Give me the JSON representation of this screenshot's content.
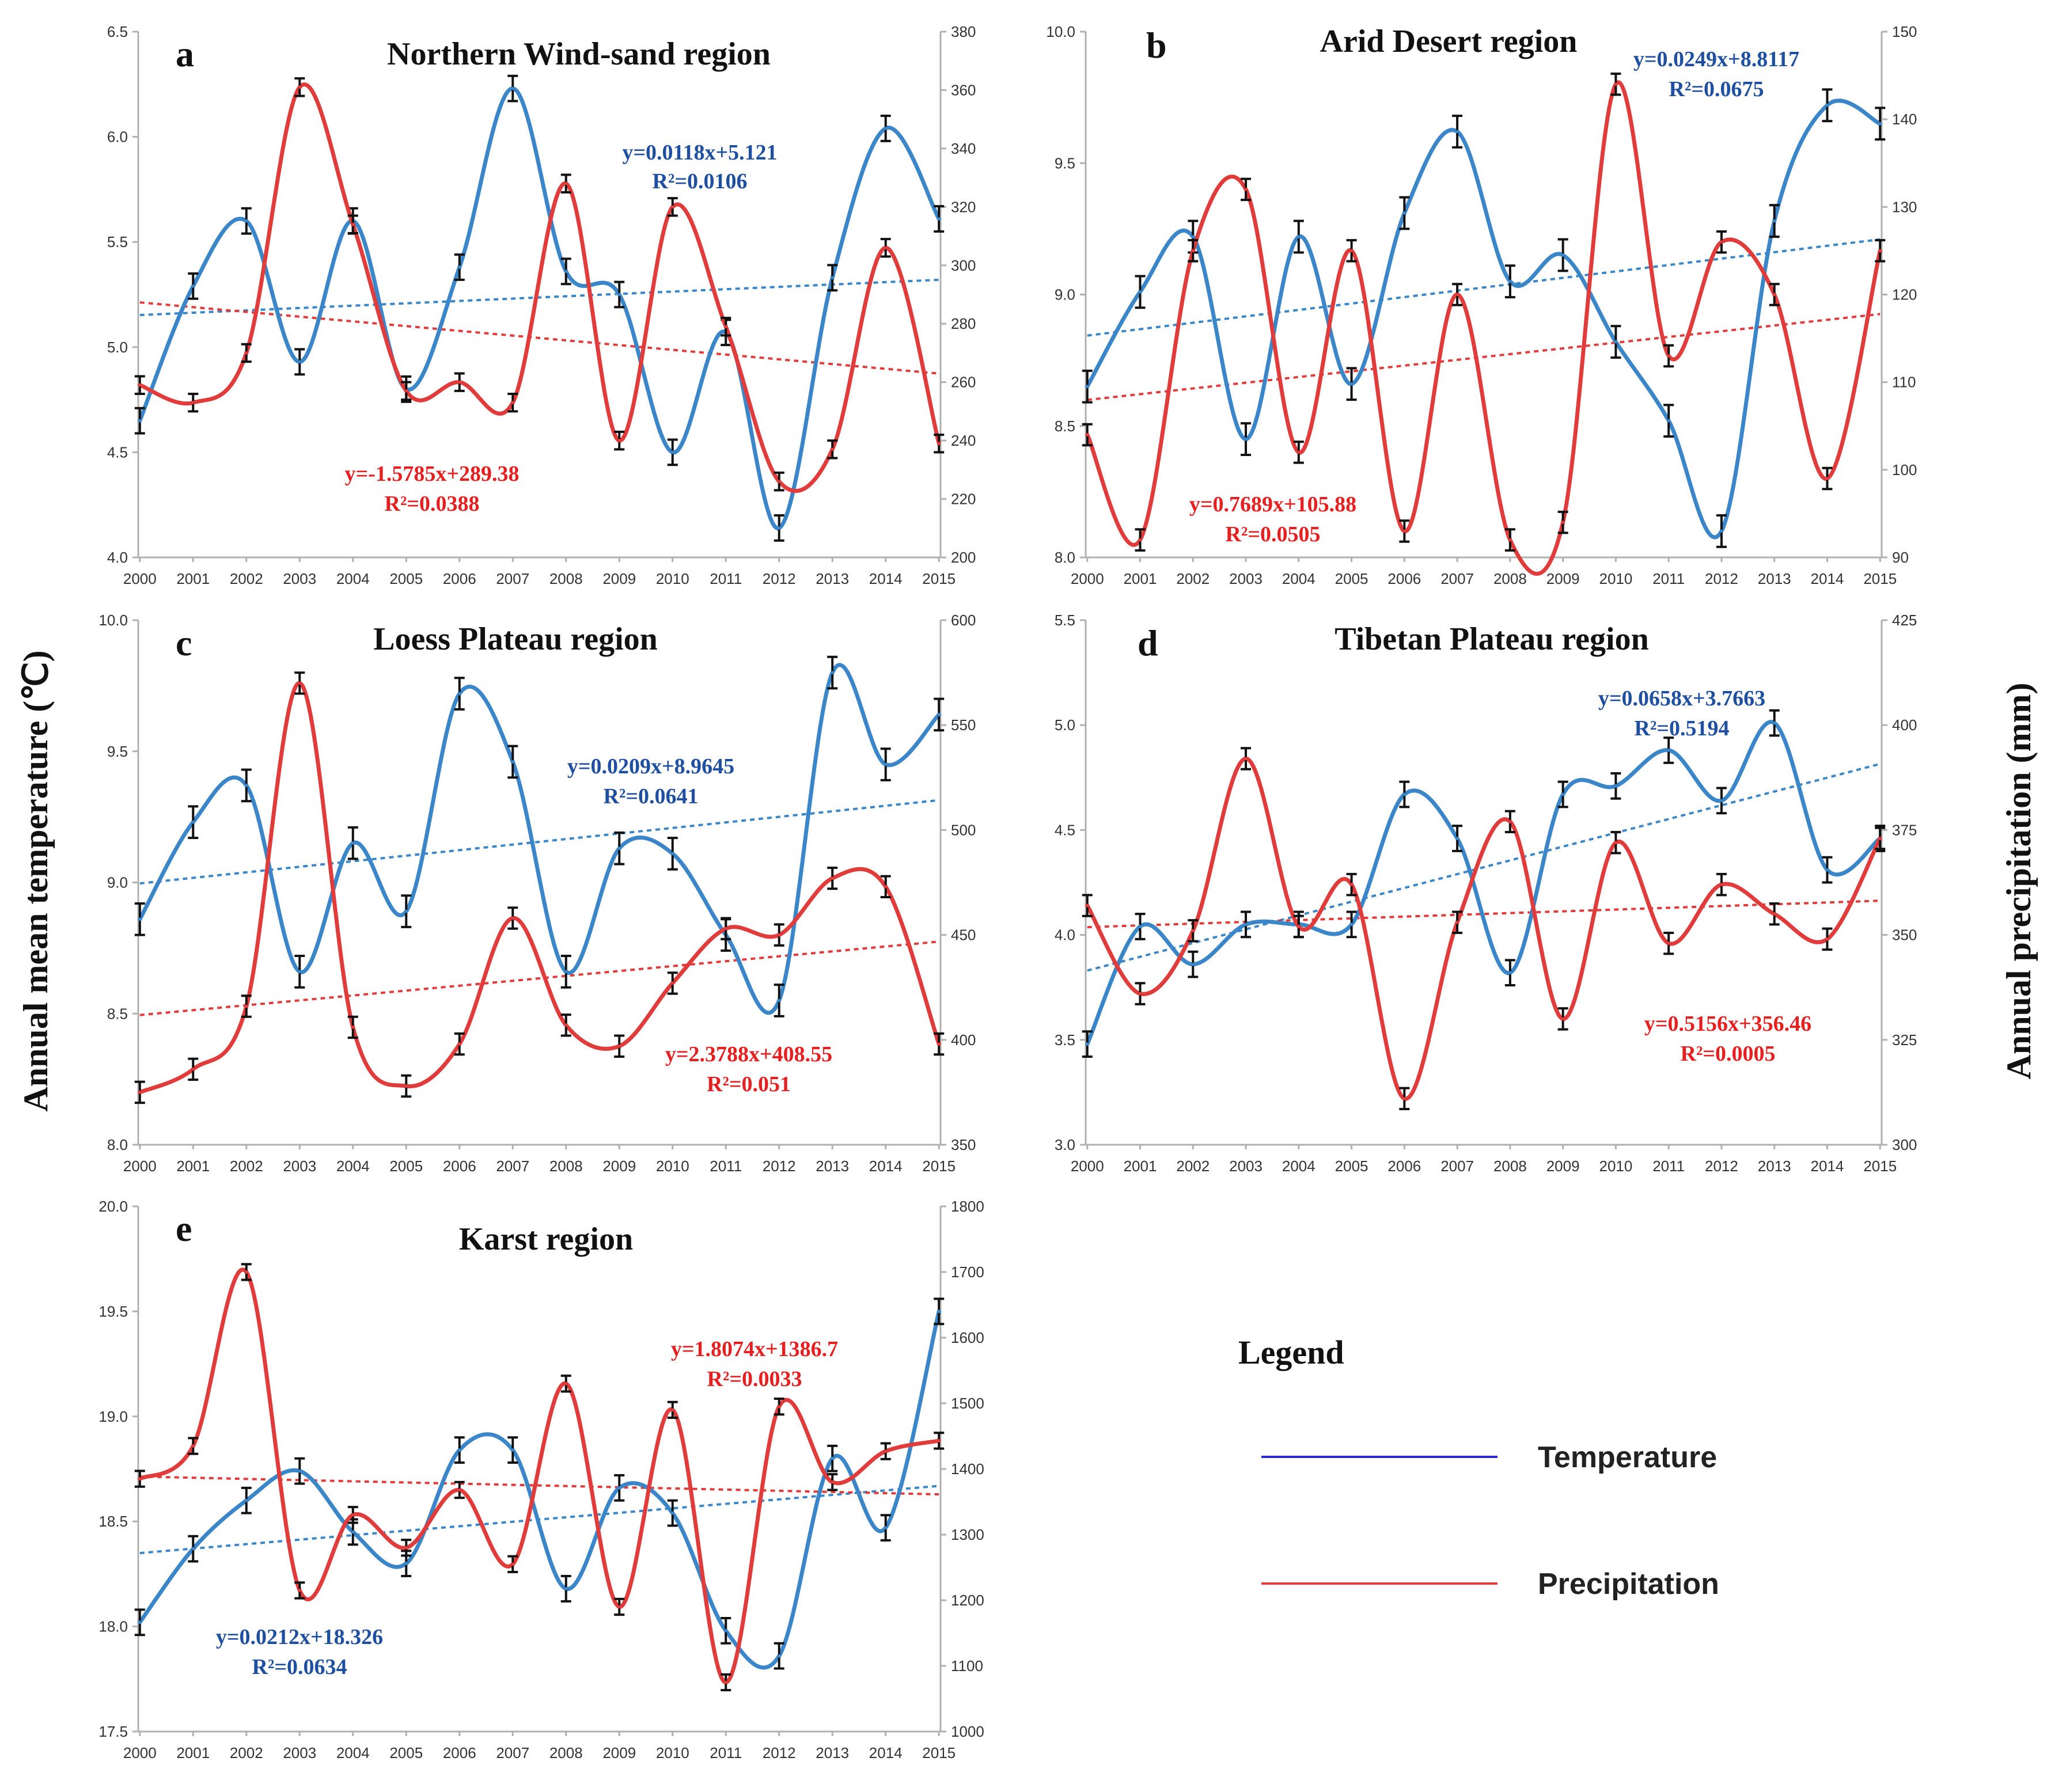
{
  "figure": {
    "y_axis_label_left": "Annual mean temperature (℃)",
    "y_axis_label_right": "Annual precipitation (mm)",
    "legend": {
      "title": "Legend",
      "items": [
        {
          "label": "Temperature",
          "color": "#2b2bc8"
        },
        {
          "label": "Precipitation",
          "color": "#e03c3c"
        }
      ]
    },
    "colors": {
      "temperature": "#3a86c8",
      "precipitation": "#e03c3c",
      "temp_eq": "#1f4fa0",
      "precip_eq": "#e62020"
    }
  },
  "chart_data": [
    {
      "type": "line",
      "panel": "a",
      "title": "Northern Wind-sand region",
      "categories": [
        "2000",
        "2001",
        "2002",
        "2003",
        "2004",
        "2005",
        "2006",
        "2007",
        "2008",
        "2009",
        "2010",
        "2011",
        "2012",
        "2013",
        "2014",
        "2015"
      ],
      "left_ylim": [
        4.0,
        6.5
      ],
      "left_ticks": [
        "4.0",
        "4.5",
        "5.0",
        "5.5",
        "6.0",
        "6.5"
      ],
      "right_ylim": [
        200,
        380
      ],
      "right_ticks": [
        "200",
        "220",
        "240",
        "260",
        "280",
        "300",
        "320",
        "340",
        "360",
        "380"
      ],
      "series": [
        {
          "name": "Temperature",
          "axis": "left",
          "values": [
            4.65,
            5.29,
            5.6,
            4.93,
            5.6,
            4.8,
            5.38,
            6.23,
            5.36,
            5.25,
            4.5,
            5.07,
            4.14,
            5.33,
            6.04,
            5.61
          ],
          "error": 0.06
        },
        {
          "name": "Precipitation",
          "axis": "right",
          "values": [
            259,
            253,
            270,
            361,
            314,
            257,
            260,
            253,
            328,
            240,
            320,
            279,
            226,
            237,
            306,
            239
          ],
          "error": 3
        }
      ],
      "trendlines": [
        {
          "series": "Temperature",
          "equation": "y=0.0118x+5.121",
          "r2": "R²=0.0106"
        },
        {
          "series": "Precipitation",
          "equation": "y=-1.5785x+289.38",
          "r2": "R²=0.0388"
        }
      ]
    },
    {
      "type": "line",
      "panel": "b",
      "title": "Arid Desert region",
      "categories": [
        "2000",
        "2001",
        "2002",
        "2003",
        "2004",
        "2005",
        "2006",
        "2007",
        "2008",
        "2009",
        "2010",
        "2011",
        "2012",
        "2013",
        "2014",
        "2015"
      ],
      "left_ylim": [
        8.0,
        10.0
      ],
      "left_ticks": [
        "8.0",
        "8.5",
        "9.0",
        "9.5",
        "10.0"
      ],
      "right_ylim": [
        90,
        150
      ],
      "right_ticks": [
        "90",
        "100",
        "110",
        "120",
        "130",
        "140",
        "150"
      ],
      "series": [
        {
          "name": "Temperature",
          "axis": "left",
          "values": [
            8.65,
            9.01,
            9.22,
            8.45,
            9.22,
            8.66,
            9.31,
            9.62,
            9.05,
            9.15,
            8.82,
            8.52,
            8.1,
            9.28,
            9.72,
            9.65
          ],
          "error": 0.06
        },
        {
          "name": "Precipitation",
          "axis": "right",
          "values": [
            104,
            92,
            125,
            132,
            102,
            125,
            93,
            120,
            92,
            94,
            144,
            113,
            126,
            120,
            99,
            125
          ],
          "error": 1.2
        }
      ],
      "trendlines": [
        {
          "series": "Temperature",
          "equation": "y=0.0249x+8.8117",
          "r2": "R²=0.0675"
        },
        {
          "series": "Precipitation",
          "equation": "y=0.7689x+105.88",
          "r2": "R²=0.0505"
        }
      ]
    },
    {
      "type": "line",
      "panel": "c",
      "title": "Loess Plateau region",
      "categories": [
        "2000",
        "2001",
        "2002",
        "2003",
        "2004",
        "2005",
        "2006",
        "2007",
        "2008",
        "2009",
        "2010",
        "2011",
        "2012",
        "2013",
        "2014",
        "2015"
      ],
      "left_ylim": [
        8.0,
        10.0
      ],
      "left_ticks": [
        "8.0",
        "8.5",
        "9.0",
        "9.5",
        "10.0"
      ],
      "right_ylim": [
        350,
        600
      ],
      "right_ticks": [
        "350",
        "400",
        "450",
        "500",
        "550",
        "600"
      ],
      "series": [
        {
          "name": "Temperature",
          "axis": "left",
          "values": [
            8.86,
            9.23,
            9.37,
            8.66,
            9.15,
            8.89,
            9.72,
            9.46,
            8.66,
            9.13,
            9.11,
            8.8,
            8.55,
            9.8,
            9.45,
            9.64
          ],
          "error": 0.06
        },
        {
          "name": "Precipitation",
          "axis": "right",
          "values": [
            375,
            386,
            416,
            570,
            406,
            378,
            398,
            458,
            407,
            397,
            427,
            453,
            450,
            477,
            473,
            398
          ],
          "error": 5
        }
      ],
      "trendlines": [
        {
          "series": "Temperature",
          "equation": "y=0.0209x+8.9645",
          "r2": "R²=0.0641"
        },
        {
          "series": "Precipitation",
          "equation": "y=2.3788x+408.55",
          "r2": "R²=0.051"
        }
      ]
    },
    {
      "type": "line",
      "panel": "d",
      "title": "Tibetan Plateau region",
      "categories": [
        "2000",
        "2001",
        "2002",
        "2003",
        "2004",
        "2005",
        "2006",
        "2007",
        "2008",
        "2009",
        "2010",
        "2011",
        "2012",
        "2013",
        "2014",
        "2015"
      ],
      "left_ylim": [
        3.0,
        5.5
      ],
      "left_ticks": [
        "3.0",
        "3.5",
        "4.0",
        "4.5",
        "5.0",
        "5.5"
      ],
      "right_ylim": [
        300,
        425
      ],
      "right_ticks": [
        "300",
        "325",
        "350",
        "375",
        "400",
        "425"
      ],
      "series": [
        {
          "name": "Temperature",
          "axis": "left",
          "values": [
            3.48,
            4.04,
            3.86,
            4.05,
            4.05,
            4.05,
            4.67,
            4.46,
            3.82,
            4.67,
            4.71,
            4.88,
            4.64,
            5.01,
            4.31,
            4.46
          ],
          "error": 0.06
        },
        {
          "name": "Precipitation",
          "axis": "right",
          "values": [
            357,
            336,
            351,
            392,
            352,
            362,
            311,
            353,
            377,
            330,
            372,
            348,
            362,
            355,
            349,
            373
          ],
          "error": 2.5
        }
      ],
      "trendlines": [
        {
          "series": "Temperature",
          "equation": "y=0.0658x+3.7663",
          "r2": "R²=0.5194"
        },
        {
          "series": "Precipitation",
          "equation": "y=0.5156x+356.46",
          "r2": "R²=0.0005"
        }
      ]
    },
    {
      "type": "line",
      "panel": "e",
      "title": "Karst region",
      "categories": [
        "2000",
        "2001",
        "2002",
        "2003",
        "2004",
        "2005",
        "2006",
        "2007",
        "2008",
        "2009",
        "2010",
        "2011",
        "2012",
        "2013",
        "2014",
        "2015"
      ],
      "left_ylim": [
        17.5,
        20.0
      ],
      "left_ticks": [
        "17.5",
        "18.0",
        "18.5",
        "19.0",
        "19.5",
        "20.0"
      ],
      "right_ylim": [
        1000,
        1800
      ],
      "right_ticks": [
        "1000",
        "1100",
        "1200",
        "1300",
        "1400",
        "1500",
        "1600",
        "1700",
        "1800"
      ],
      "series": [
        {
          "name": "Temperature",
          "axis": "left",
          "values": [
            18.02,
            18.37,
            18.6,
            18.74,
            18.45,
            18.3,
            18.84,
            18.84,
            18.18,
            18.66,
            18.54,
            17.98,
            17.86,
            18.8,
            18.47,
            19.5
          ],
          "error": 0.06
        },
        {
          "name": "Precipitation",
          "axis": "right",
          "values": [
            1385,
            1435,
            1700,
            1215,
            1330,
            1280,
            1368,
            1255,
            1530,
            1190,
            1490,
            1075,
            1495,
            1380,
            1427,
            1443
          ],
          "error": 12
        }
      ],
      "trendlines": [
        {
          "series": "Temperature",
          "equation": "y=0.0212x+18.326",
          "r2": "R²=0.0634"
        },
        {
          "series": "Precipitation",
          "equation": "y=1.8074x+1386.7",
          "r2": "R²=0.0033"
        }
      ]
    }
  ]
}
